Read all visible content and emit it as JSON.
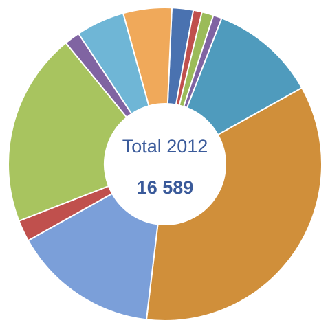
{
  "chart_data": {
    "type": "pie",
    "donut": true,
    "center": {
      "title": "Total 2012",
      "value": "16 589"
    },
    "slices": [
      {
        "value": 2.2,
        "color": "#4a72b0"
      },
      {
        "value": 0.9,
        "color": "#c0504d"
      },
      {
        "value": 1.2,
        "color": "#9bbb59"
      },
      {
        "value": 0.9,
        "color": "#8064a2"
      },
      {
        "value": 11.0,
        "color": "#4f9bbd"
      },
      {
        "value": 35.0,
        "color": "#d08f3a"
      },
      {
        "value": 15.0,
        "color": "#7b9fd9"
      },
      {
        "value": 2.2,
        "color": "#c0504d"
      },
      {
        "value": 20.0,
        "color": "#a8c45f"
      },
      {
        "value": 1.6,
        "color": "#8064a2"
      },
      {
        "value": 5.0,
        "color": "#6fb6d6"
      },
      {
        "value": 5.0,
        "color": "#f0a95a"
      }
    ]
  }
}
